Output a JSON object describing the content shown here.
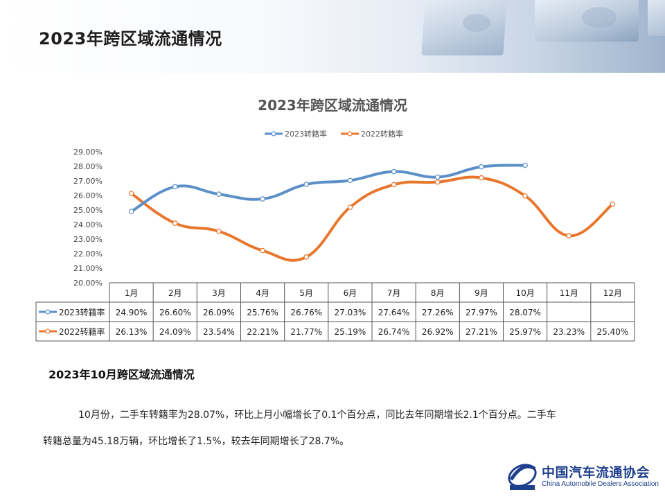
{
  "page": {
    "title": "2023年跨区域流通情况"
  },
  "chart_data": {
    "type": "line",
    "title": "2023年跨区域流通情况",
    "categories": [
      "1月",
      "2月",
      "3月",
      "4月",
      "5月",
      "6月",
      "7月",
      "8月",
      "9月",
      "10月",
      "11月",
      "12月"
    ],
    "series": [
      {
        "name": "2023转籍率",
        "color": "#5b8fc8",
        "values": [
          24.9,
          26.6,
          26.09,
          25.76,
          26.76,
          27.03,
          27.64,
          27.26,
          27.97,
          28.07,
          null,
          null
        ],
        "labels": [
          "24.90%",
          "26.60%",
          "26.09%",
          "25.76%",
          "26.76%",
          "27.03%",
          "27.64%",
          "27.26%",
          "27.97%",
          "28.07%",
          "",
          ""
        ]
      },
      {
        "name": "2022转籍率",
        "color": "#e8772e",
        "values": [
          26.13,
          24.09,
          23.54,
          22.21,
          21.77,
          25.19,
          26.74,
          26.92,
          27.21,
          25.97,
          23.23,
          25.4
        ],
        "labels": [
          "26.13%",
          "24.09%",
          "23.54%",
          "22.21%",
          "21.77%",
          "25.19%",
          "26.74%",
          "26.92%",
          "27.21%",
          "25.97%",
          "23.23%",
          "25.40%"
        ]
      }
    ],
    "y_ticks": [
      "20.00%",
      "21.00%",
      "22.00%",
      "23.00%",
      "24.00%",
      "25.00%",
      "26.00%",
      "27.00%",
      "28.00%",
      "29.00%"
    ],
    "ylim": [
      20,
      29
    ],
    "legend_position": "top-center",
    "data_table": true,
    "grid": false
  },
  "summary": {
    "heading": "2023年10月跨区域流通情况",
    "line1": "10月份，二手车转籍率为28.07%，环比上月小幅增长了0.1个百分点，同比去年同期增长2.1个百分点。二手车",
    "line2": "转籍总量为45.18万辆，环比增长了1.5%，较去年同期增长了28.7%。"
  },
  "logo": {
    "name_cn": "中国汽车流通协会",
    "name_en": "China Automobile Dealers Association"
  }
}
